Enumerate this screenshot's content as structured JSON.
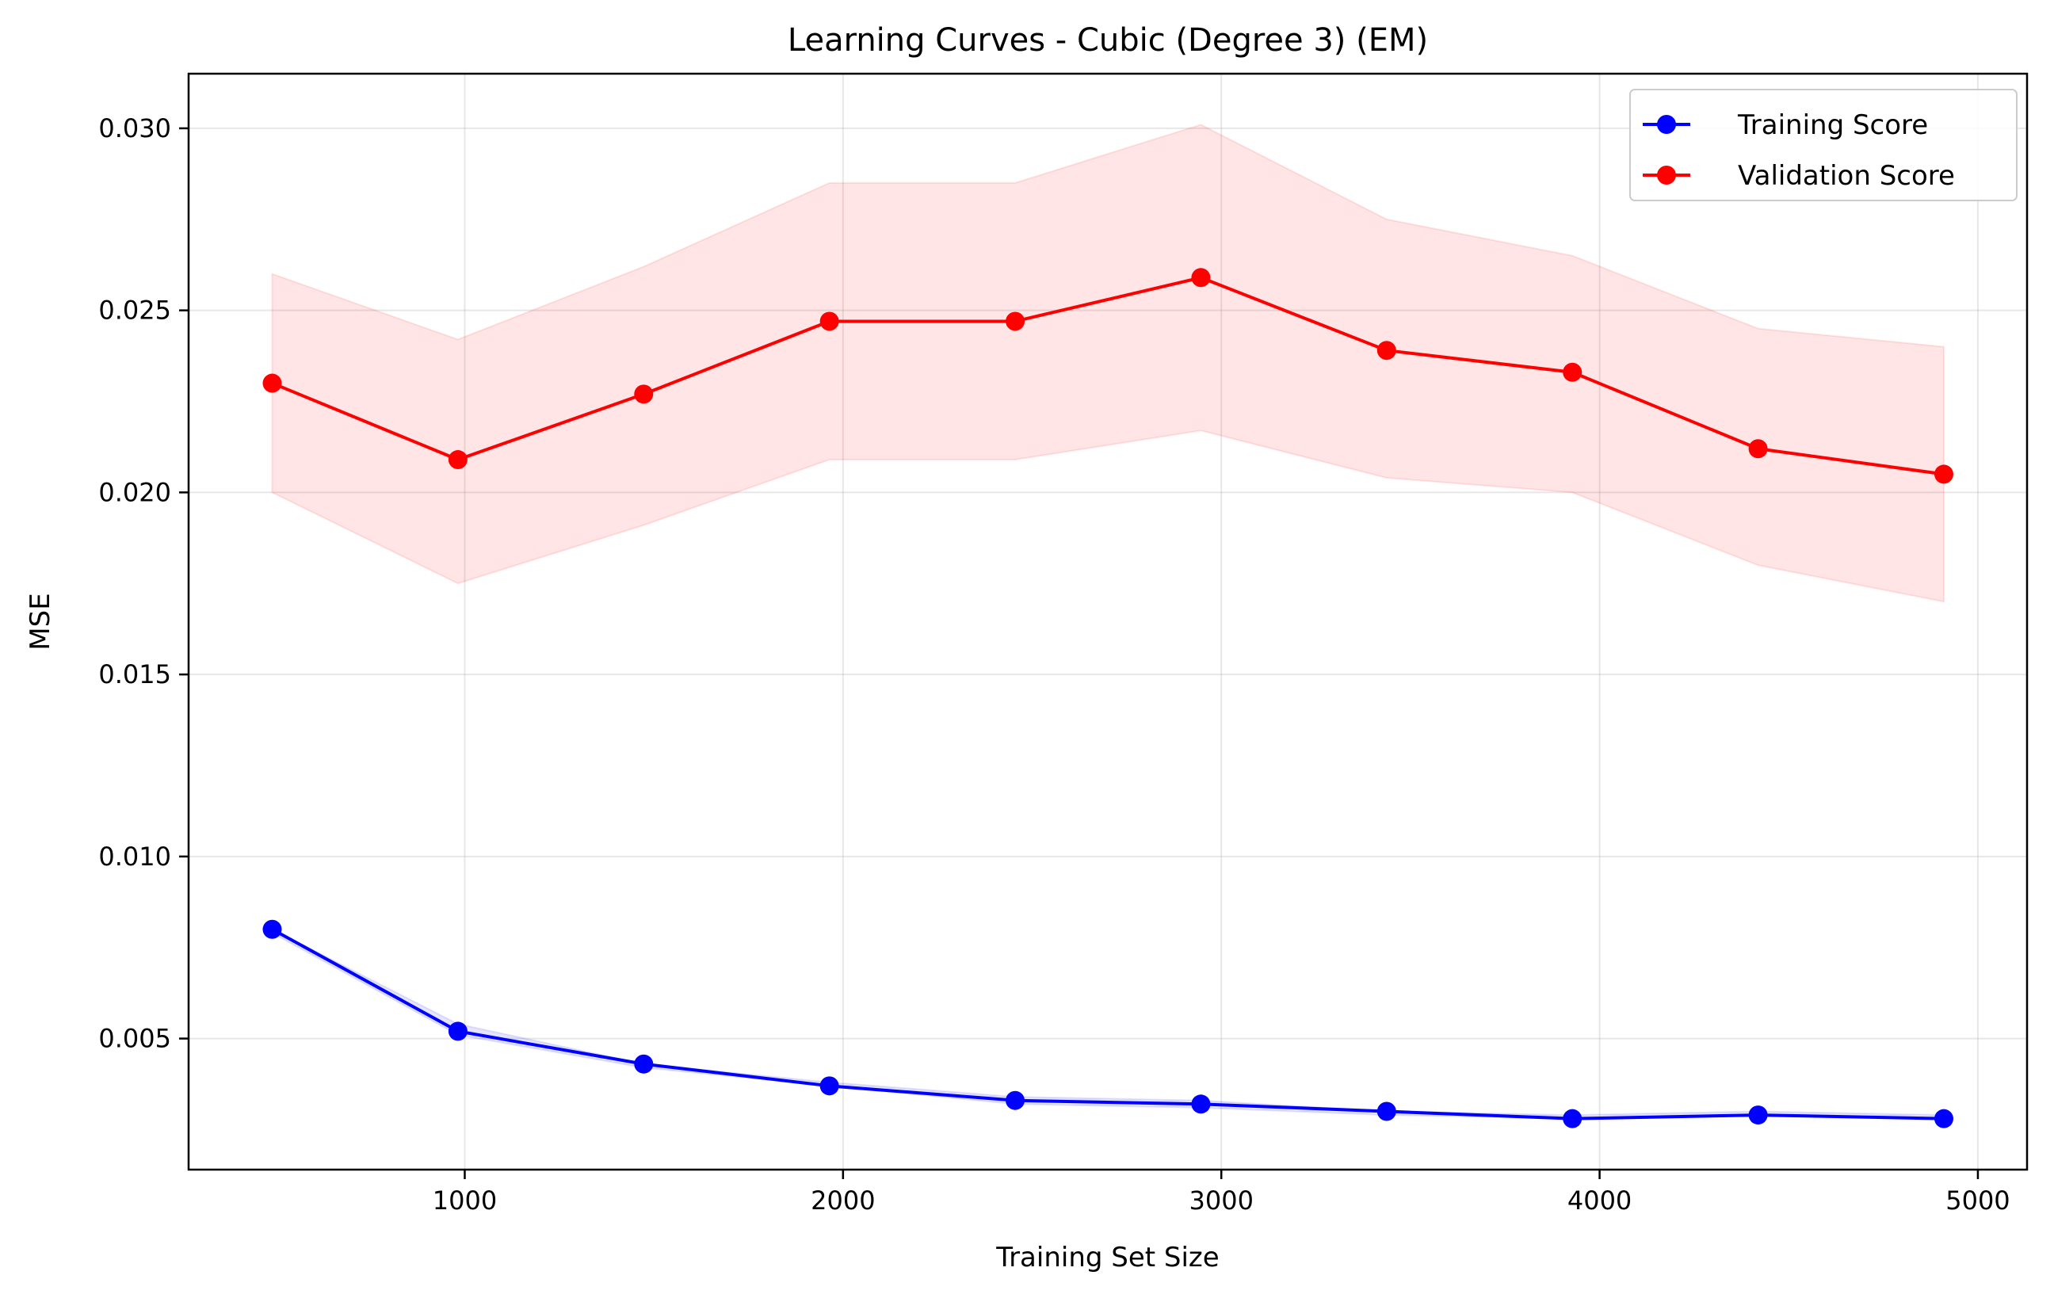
{
  "chart_data": {
    "type": "line",
    "title": "Learning Curves - Cubic (Degree 3) (EM)",
    "xlabel": "Training Set Size",
    "ylabel": "MSE",
    "xlim": [
      270,
      5130
    ],
    "ylim": [
      0.0014,
      0.0315
    ],
    "x_ticks": [
      1000,
      2000,
      3000,
      4000,
      5000
    ],
    "y_ticks": [
      0.005,
      0.01,
      0.015,
      0.02,
      0.025,
      0.03
    ],
    "x_tick_labels": [
      "1000",
      "2000",
      "3000",
      "4000",
      "5000"
    ],
    "y_tick_labels": [
      "0.005",
      "0.010",
      "0.015",
      "0.020",
      "0.025",
      "0.030"
    ],
    "grid": true,
    "legend_position": "top-right",
    "x": [
      491,
      982,
      1473,
      1964,
      2455,
      2946,
      3437,
      3928,
      4419,
      4910
    ],
    "series": [
      {
        "name": "Training Score",
        "color": "#0000ff",
        "values": [
          0.008,
          0.0052,
          0.0043,
          0.0037,
          0.0033,
          0.0032,
          0.003,
          0.0028,
          0.0029,
          0.0028
        ],
        "band_lower": [
          0.0079,
          0.0051,
          0.0042,
          0.0037,
          0.0032,
          0.0031,
          0.0029,
          0.0028,
          0.0029,
          0.0028
        ],
        "band_upper": [
          0.008,
          0.0054,
          0.0043,
          0.0038,
          0.0034,
          0.0033,
          0.003,
          0.0029,
          0.003,
          0.0029
        ],
        "band_color": "#0000ff"
      },
      {
        "name": "Validation Score",
        "color": "#ff0000",
        "values": [
          0.023,
          0.0209,
          0.0227,
          0.0247,
          0.0247,
          0.0259,
          0.0239,
          0.0233,
          0.0212,
          0.0205
        ],
        "band_lower": [
          0.02,
          0.0175,
          0.0191,
          0.0209,
          0.0209,
          0.0217,
          0.0204,
          0.02,
          0.018,
          0.017
        ],
        "band_upper": [
          0.026,
          0.0242,
          0.0262,
          0.0285,
          0.0285,
          0.0301,
          0.0275,
          0.0265,
          0.0245,
          0.024
        ],
        "band_color": "#ff0000"
      }
    ]
  }
}
